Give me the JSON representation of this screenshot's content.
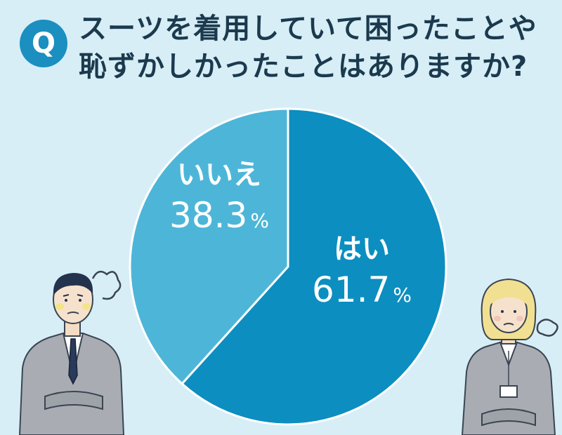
{
  "question": {
    "badge": "Q",
    "line1": "スーツを着用していて困ったことや",
    "line2": "恥ずかしかったことはありますか?"
  },
  "colors": {
    "yes": "#0c8ec0",
    "no": "#4db6d8",
    "background": "#d7eef7",
    "text": "#1c3a4e"
  },
  "chart_data": {
    "type": "pie",
    "slices": [
      {
        "label": "はい",
        "value": 61.7,
        "display": "61.7",
        "unit": "%",
        "color": "#0c8ec0"
      },
      {
        "label": "いいえ",
        "value": 38.3,
        "display": "38.3",
        "unit": "%",
        "color": "#4db6d8"
      }
    ]
  }
}
